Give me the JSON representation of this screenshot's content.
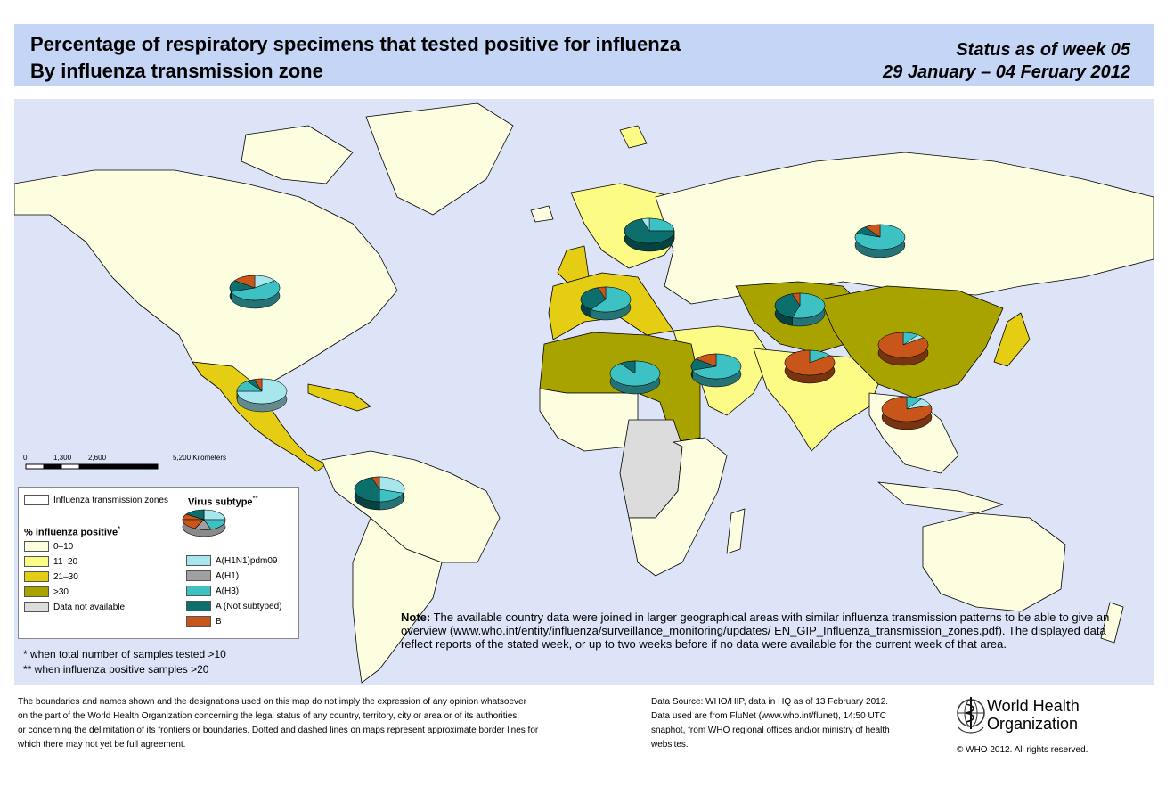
{
  "header": {
    "title_line1": "Percentage of respiratory specimens that tested positive for influenza",
    "title_line2": "By influenza transmission zone",
    "status_line1": "Status as of week 05",
    "status_line2": "29 January – 04 Feruary 2012"
  },
  "scale": {
    "ticks": [
      "0",
      "1,300",
      "2,600",
      "5,200 Kilometers"
    ]
  },
  "legend": {
    "zones_label": "Influenza transmission zones",
    "virus_title": "Virus subtype",
    "virus_title_mark": "**",
    "positive_title": "% influenza positive",
    "positive_title_mark": "*",
    "positive_classes": [
      {
        "label": "0–10",
        "color": "#fdfde0"
      },
      {
        "label": "11–20",
        "color": "#fbfb86"
      },
      {
        "label": "21–30",
        "color": "#e4cd13"
      },
      {
        "label": ">30",
        "color": "#a9a300"
      },
      {
        "label": "Data not available",
        "color": "#dcdcdc"
      }
    ],
    "subtypes": [
      {
        "label": "A(H1N1)pdm09",
        "color": "#a6e6ec"
      },
      {
        "label": "A(H1)",
        "color": "#a0a0a0"
      },
      {
        "label": "A(H3)",
        "color": "#3ec1c3"
      },
      {
        "label": "A (Not subtyped)",
        "color": "#0d6e6e"
      },
      {
        "label": "B",
        "color": "#c8561b"
      }
    ]
  },
  "footnotes": {
    "star1": "*   when total number of samples tested >10",
    "star2": "** when influenza positive samples >20"
  },
  "note": {
    "label": "Note:",
    "text": " The available country data were joined in larger geographical areas with similar influenza transmission patterns to be able to give an overview (www.who.int/entity/influenza/surveillance_monitoring/updates/ EN_GIP_Influenza_transmission_zones.pdf). The displayed data reflect reports of the stated week, or up to two weeks before if no data were available for the current week of that area."
  },
  "disclaimer": {
    "line1": "The boundaries and names shown and the designations used on this map do not imply the expression of any opinion whatsoever",
    "line2": "on the part of the World Health Organization concerning the legal status of any country, territory, city or area or of its authorities,",
    "line3": "or concerning the delimitation of its frontiers or boundaries. Dotted and dashed lines on maps represent approximate border lines for",
    "line4": " which there may not yet be full agreement."
  },
  "datasource": {
    "line1": "Data Source: WHO/HIP, data in HQ as of 13 February 2012.",
    "line2": "Data used are from FluNet (www.who.int/flunet), 14:50 UTC",
    "line3": "snaphot, from WHO regional offices and/or ministry of health",
    "line4": "websites."
  },
  "who": {
    "name_line1": "World Health",
    "name_line2": "Organization",
    "copyright": "© WHO 2012. All rights reserved."
  },
  "zones": [
    {
      "name": "North America",
      "class": "0–10"
    },
    {
      "name": "Central America",
      "class": "21–30"
    },
    {
      "name": "Tropical South America",
      "class": "0–10"
    },
    {
      "name": "Temperate South America",
      "class": "0–10"
    },
    {
      "name": "Northern Europe",
      "class": "11–20"
    },
    {
      "name": "South West Europe",
      "class": "21–30"
    },
    {
      "name": "Eastern Europe",
      "class": "0–10"
    },
    {
      "name": "Central Asia",
      "class": ">30"
    },
    {
      "name": "Eastern Asia",
      "class": ">30"
    },
    {
      "name": "Northern Africa",
      "class": ">30"
    },
    {
      "name": "Western Asia",
      "class": "11–20"
    },
    {
      "name": "Southern Asia",
      "class": "11–20"
    },
    {
      "name": "South East Asia",
      "class": "0–10"
    },
    {
      "name": "Middle Africa",
      "class": "Data not available"
    },
    {
      "name": "Oceania",
      "class": "0–10"
    }
  ],
  "pies": [
    {
      "region": "North America",
      "shares": {
        "A(H1N1)pdm09": 0.15,
        "A(H3)": 0.55,
        "A (Not subtyped)": 0.15,
        "B": 0.15
      }
    },
    {
      "region": "Central America",
      "shares": {
        "A(H1N1)pdm09": 0.75,
        "A(H3)": 0.15,
        "A (Not subtyped)": 0.05,
        "B": 0.05
      }
    },
    {
      "region": "Tropical South America",
      "shares": {
        "A(H1N1)pdm09": 0.3,
        "A(H3)": 0.2,
        "A (Not subtyped)": 0.45,
        "B": 0.05
      }
    },
    {
      "region": "Northern Europe",
      "shares": {
        "A(H3)": 0.25,
        "A (Not subtyped)": 0.7,
        "A(H1N1)pdm09": 0.05
      }
    },
    {
      "region": "South West Europe",
      "shares": {
        "A(H3)": 0.6,
        "A (Not subtyped)": 0.35,
        "B": 0.05
      }
    },
    {
      "region": "Eastern Europe",
      "shares": {
        "A(H3)": 0.8,
        "A (Not subtyped)": 0.1,
        "B": 0.1
      }
    },
    {
      "region": "Central Asia",
      "shares": {
        "A(H3)": 0.55,
        "A (Not subtyped)": 0.4,
        "B": 0.05
      }
    },
    {
      "region": "Northern Africa",
      "shares": {
        "A(H3)": 0.9,
        "A (Not subtyped)": 0.1
      }
    },
    {
      "region": "Western Asia",
      "shares": {
        "A(H3)": 0.7,
        "A (Not subtyped)": 0.15,
        "B": 0.15
      }
    },
    {
      "region": "Southern Asia",
      "shares": {
        "A(H3)": 0.15,
        "B": 0.85
      }
    },
    {
      "region": "Eastern Asia",
      "shares": {
        "A(H3)": 0.1,
        "A(H1N1)pdm09": 0.05,
        "B": 0.85
      }
    },
    {
      "region": "South East Asia",
      "shares": {
        "A(H3)": 0.1,
        "A(H1N1)pdm09": 0.1,
        "B": 0.8
      }
    }
  ]
}
